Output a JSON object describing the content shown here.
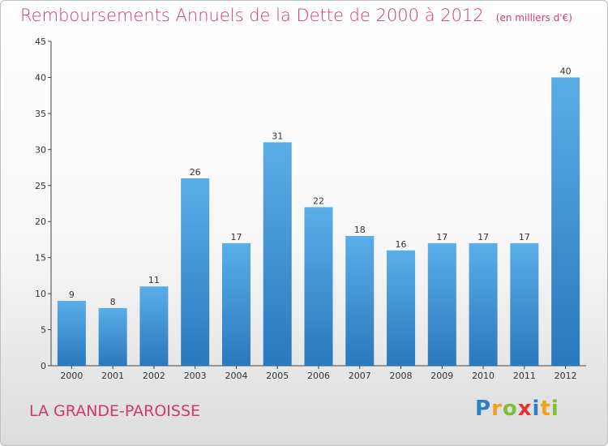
{
  "title": "Remboursements Annuels de la Dette de 2000 à 2012",
  "subtitle": "(en milliers d'€)",
  "commune": "LA GRANDE-PAROISSE",
  "logo": {
    "letters": [
      "P",
      "r",
      "o",
      "x",
      "i",
      "t",
      "i"
    ],
    "colors": [
      "#2f7fc4",
      "#f3a11c",
      "#7bbf3a",
      "#e0332e",
      "#2f7fc4",
      "#f3a11c",
      "#7bbf3a"
    ]
  },
  "colors": {
    "bar_light": "#5aaee8",
    "bar_dark": "#2a78bd",
    "title": "#d2386e"
  },
  "chart_data": {
    "type": "bar",
    "categories": [
      "2000",
      "2001",
      "2002",
      "2003",
      "2004",
      "2005",
      "2006",
      "2007",
      "2008",
      "2009",
      "2010",
      "2011",
      "2012"
    ],
    "values": [
      9,
      8,
      11,
      26,
      17,
      31,
      22,
      18,
      16,
      17,
      17,
      17,
      40
    ],
    "ylim": [
      0,
      45
    ],
    "yticks": [
      0,
      5,
      10,
      15,
      20,
      25,
      30,
      35,
      40,
      45
    ],
    "grid": false,
    "xlabel": "",
    "ylabel": ""
  }
}
